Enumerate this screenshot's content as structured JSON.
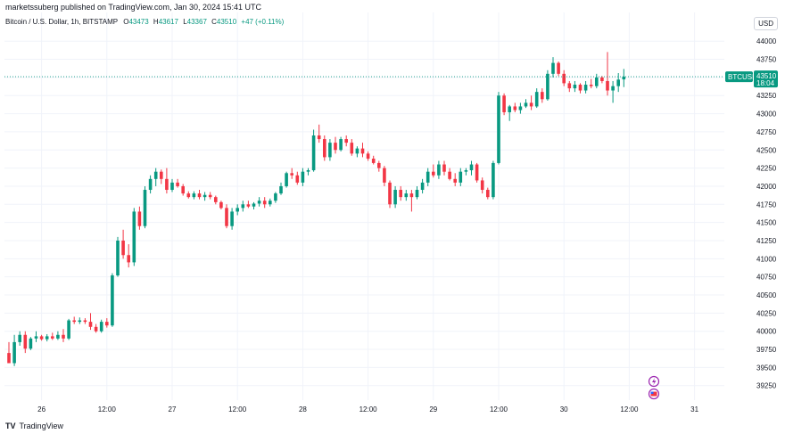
{
  "header": {
    "publisher": "marketssuberg published on TradingView.com, Jan 30, 2024 15:41 UTC",
    "symbol_desc": "Bitcoin / U.S. Dollar, 1h, BITSTAMP",
    "o_label": "O",
    "o_value": "43473",
    "h_label": "H",
    "h_value": "43617",
    "l_label": "L",
    "l_value": "43367",
    "c_label": "C",
    "c_value": "43510",
    "change": "+47 (+0.11%)",
    "currency": "USD"
  },
  "price_tag": {
    "symbol": "BTCUSD",
    "price": "43510",
    "countdown": "18:04"
  },
  "footer": {
    "brand_logo": "TV",
    "brand": "TradingView"
  },
  "colors": {
    "up": "#089981",
    "down": "#f23645",
    "grid": "#f0f3fa",
    "text": "#131722",
    "flag_icon": "#9c27b0"
  },
  "chart_data": {
    "type": "candlestick",
    "y_ticks": [
      39250,
      39500,
      39750,
      40000,
      40250,
      40500,
      40750,
      41000,
      41250,
      41500,
      41750,
      42000,
      42250,
      42500,
      42750,
      43000,
      43250,
      43500,
      43750,
      44000
    ],
    "ylim": [
      39050,
      44150
    ],
    "x_ticks": [
      {
        "label": "26",
        "index": 6
      },
      {
        "label": "12:00",
        "index": 18
      },
      {
        "label": "27",
        "index": 30
      },
      {
        "label": "12:00",
        "index": 42
      },
      {
        "label": "28",
        "index": 54
      },
      {
        "label": "12:00",
        "index": 66
      },
      {
        "label": "29",
        "index": 78
      },
      {
        "label": "12:00",
        "index": 90
      },
      {
        "label": "30",
        "index": 102
      },
      {
        "label": "12:00",
        "index": 114
      },
      {
        "label": "31",
        "index": 126
      }
    ],
    "last_price": 43510,
    "candles": [
      [
        39700,
        39850,
        39580,
        39560
      ],
      [
        39560,
        39950,
        39520,
        39850
      ],
      [
        39850,
        40000,
        39800,
        39950
      ],
      [
        39950,
        40000,
        39700,
        39760
      ],
      [
        39760,
        39920,
        39740,
        39900
      ],
      [
        39900,
        40000,
        39850,
        39930
      ],
      [
        39930,
        39950,
        39870,
        39890
      ],
      [
        39890,
        39960,
        39860,
        39930
      ],
      [
        39930,
        39980,
        39880,
        39900
      ],
      [
        39900,
        40000,
        39880,
        39950
      ],
      [
        39950,
        40030,
        39850,
        39900
      ],
      [
        39900,
        40170,
        39880,
        40150
      ],
      [
        40150,
        40200,
        40100,
        40130
      ],
      [
        40130,
        40190,
        40100,
        40150
      ],
      [
        40150,
        40180,
        40100,
        40130
      ],
      [
        40130,
        40250,
        40020,
        40060
      ],
      [
        40060,
        40100,
        39980,
        40000
      ],
      [
        40000,
        40160,
        39980,
        40130
      ],
      [
        40130,
        40180,
        40050,
        40080
      ],
      [
        40080,
        40800,
        40060,
        40770
      ],
      [
        40770,
        41300,
        40750,
        41250
      ],
      [
        41250,
        41400,
        41000,
        41050
      ],
      [
        41050,
        41200,
        40880,
        40950
      ],
      [
        40950,
        41700,
        40900,
        41650
      ],
      [
        41650,
        41720,
        41400,
        41450
      ],
      [
        41450,
        42000,
        41420,
        41950
      ],
      [
        41950,
        42150,
        41900,
        42100
      ],
      [
        42100,
        42250,
        42000,
        42200
      ],
      [
        42200,
        42230,
        42030,
        42100
      ],
      [
        42100,
        42250,
        41900,
        41950
      ],
      [
        41950,
        42100,
        41920,
        42050
      ],
      [
        42050,
        42100,
        41980,
        42000
      ],
      [
        42000,
        42030,
        41870,
        41900
      ],
      [
        41900,
        41930,
        41830,
        41850
      ],
      [
        41850,
        41930,
        41820,
        41900
      ],
      [
        41900,
        41950,
        41820,
        41850
      ],
      [
        41850,
        41920,
        41800,
        41880
      ],
      [
        41880,
        41920,
        41820,
        41850
      ],
      [
        41850,
        41870,
        41750,
        41780
      ],
      [
        41780,
        41800,
        41680,
        41700
      ],
      [
        41700,
        41750,
        41420,
        41450
      ],
      [
        41450,
        41700,
        41400,
        41650
      ],
      [
        41650,
        41750,
        41600,
        41700
      ],
      [
        41700,
        41800,
        41650,
        41750
      ],
      [
        41750,
        41800,
        41700,
        41720
      ],
      [
        41720,
        41780,
        41680,
        41760
      ],
      [
        41760,
        41850,
        41720,
        41800
      ],
      [
        41800,
        41850,
        41700,
        41750
      ],
      [
        41750,
        41830,
        41720,
        41800
      ],
      [
        41800,
        41920,
        41770,
        41900
      ],
      [
        41900,
        42050,
        41880,
        42000
      ],
      [
        42000,
        42200,
        41980,
        42180
      ],
      [
        42180,
        42250,
        42100,
        42150
      ],
      [
        42150,
        42200,
        42020,
        42050
      ],
      [
        42050,
        42250,
        42000,
        42200
      ],
      [
        42200,
        42250,
        42150,
        42220
      ],
      [
        42220,
        42780,
        42200,
        42700
      ],
      [
        42700,
        42850,
        42600,
        42650
      ],
      [
        42650,
        42700,
        42350,
        42400
      ],
      [
        42400,
        42650,
        42350,
        42600
      ],
      [
        42600,
        42680,
        42450,
        42500
      ],
      [
        42500,
        42680,
        42480,
        42650
      ],
      [
        42650,
        42700,
        42550,
        42600
      ],
      [
        42600,
        42650,
        42420,
        42450
      ],
      [
        42450,
        42550,
        42400,
        42520
      ],
      [
        42520,
        42600,
        42400,
        42450
      ],
      [
        42450,
        42480,
        42350,
        42380
      ],
      [
        42380,
        42420,
        42300,
        42320
      ],
      [
        42320,
        42350,
        42200,
        42250
      ],
      [
        42250,
        42280,
        42000,
        42050
      ],
      [
        42050,
        42080,
        41700,
        41750
      ],
      [
        41750,
        42000,
        41700,
        41950
      ],
      [
        41950,
        42000,
        41800,
        41850
      ],
      [
        41850,
        41950,
        41800,
        41900
      ],
      [
        41900,
        41950,
        41650,
        41850
      ],
      [
        41850,
        42000,
        41820,
        41950
      ],
      [
        41950,
        42100,
        41900,
        42050
      ],
      [
        42050,
        42250,
        42000,
        42200
      ],
      [
        42200,
        42300,
        42120,
        42150
      ],
      [
        42150,
        42350,
        42100,
        42300
      ],
      [
        42300,
        42350,
        42150,
        42200
      ],
      [
        42200,
        42250,
        42080,
        42100
      ],
      [
        42100,
        42180,
        42000,
        42050
      ],
      [
        42050,
        42250,
        42000,
        42200
      ],
      [
        42200,
        42250,
        42150,
        42220
      ],
      [
        42220,
        42350,
        42150,
        42300
      ],
      [
        42300,
        42320,
        42050,
        42080
      ],
      [
        42080,
        42120,
        41900,
        41950
      ],
      [
        41950,
        41980,
        41820,
        41850
      ],
      [
        41850,
        42350,
        41820,
        42320
      ],
      [
        42320,
        43300,
        42300,
        43250
      ],
      [
        43250,
        43280,
        42980,
        43020
      ],
      [
        43020,
        43120,
        42900,
        43100
      ],
      [
        43100,
        43150,
        43020,
        43050
      ],
      [
        43050,
        43150,
        43000,
        43100
      ],
      [
        43100,
        43200,
        43080,
        43150
      ],
      [
        43150,
        43250,
        43050,
        43100
      ],
      [
        43100,
        43350,
        43080,
        43300
      ],
      [
        43300,
        43350,
        43150,
        43200
      ],
      [
        43200,
        43600,
        43180,
        43550
      ],
      [
        43550,
        43780,
        43500,
        43700
      ],
      [
        43700,
        43720,
        43520,
        43550
      ],
      [
        43550,
        43600,
        43380,
        43420
      ],
      [
        43420,
        43450,
        43300,
        43350
      ],
      [
        43350,
        43450,
        43300,
        43400
      ],
      [
        43400,
        43420,
        43280,
        43320
      ],
      [
        43320,
        43450,
        43280,
        43400
      ],
      [
        43400,
        43480,
        43350,
        43380
      ],
      [
        43380,
        43550,
        43350,
        43500
      ],
      [
        43500,
        43520,
        43420,
        43450
      ],
      [
        43450,
        43850,
        43250,
        43320
      ],
      [
        43320,
        43450,
        43150,
        43380
      ],
      [
        43380,
        43560,
        43300,
        43470
      ],
      [
        43473,
        43617,
        43367,
        43510
      ]
    ]
  }
}
